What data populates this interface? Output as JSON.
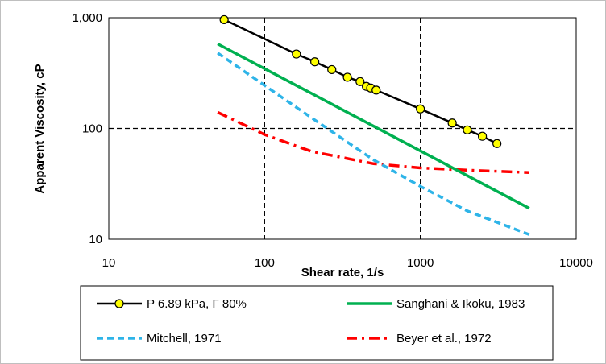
{
  "chart_data": {
    "type": "line",
    "xlabel": "Shear rate, 1/s",
    "ylabel": "Apparent Viscosity, cP",
    "x_scale": "log",
    "y_scale": "log",
    "xlim": [
      10,
      10000
    ],
    "ylim": [
      10,
      1000
    ],
    "x_ticks": [
      10,
      100,
      1000,
      10000
    ],
    "x_tick_labels": [
      "10",
      "100",
      "1000",
      "10000"
    ],
    "y_ticks": [
      10,
      100,
      1000
    ],
    "y_tick_labels": [
      "10",
      "100",
      "1,000"
    ],
    "grid": "major, dashed",
    "legend_position": "bottom",
    "series": [
      {
        "name": "P  6.89 kPa, Γ 80%",
        "color": "#000000",
        "marker_color": "#FFFF00",
        "line_style": "solid",
        "x": [
          55,
          160,
          210,
          270,
          340,
          410,
          450,
          480,
          520,
          1000,
          1600,
          2000,
          2500,
          3100
        ],
        "y": [
          960,
          470,
          400,
          340,
          290,
          265,
          240,
          232,
          222,
          150,
          112,
          97,
          85,
          73
        ]
      },
      {
        "name": "Sanghani & Ikoku, 1983",
        "color": "#00B050",
        "line_style": "solid",
        "x": [
          50,
          5000
        ],
        "y": [
          580,
          19
        ]
      },
      {
        "name": "Mitchell, 1971",
        "color": "#2EB4E8",
        "line_style": "dashed",
        "x": [
          50,
          100,
          200,
          500,
          1000,
          2000,
          5000
        ],
        "y": [
          480,
          245,
          125,
          52,
          30,
          18,
          11
        ]
      },
      {
        "name": "Beyer et al., 1972",
        "color": "#FF0000",
        "line_style": "dash-dot",
        "x": [
          50,
          100,
          200,
          500,
          1000,
          2000,
          5000
        ],
        "y": [
          140,
          88,
          62,
          48,
          44,
          42,
          40
        ]
      }
    ]
  }
}
